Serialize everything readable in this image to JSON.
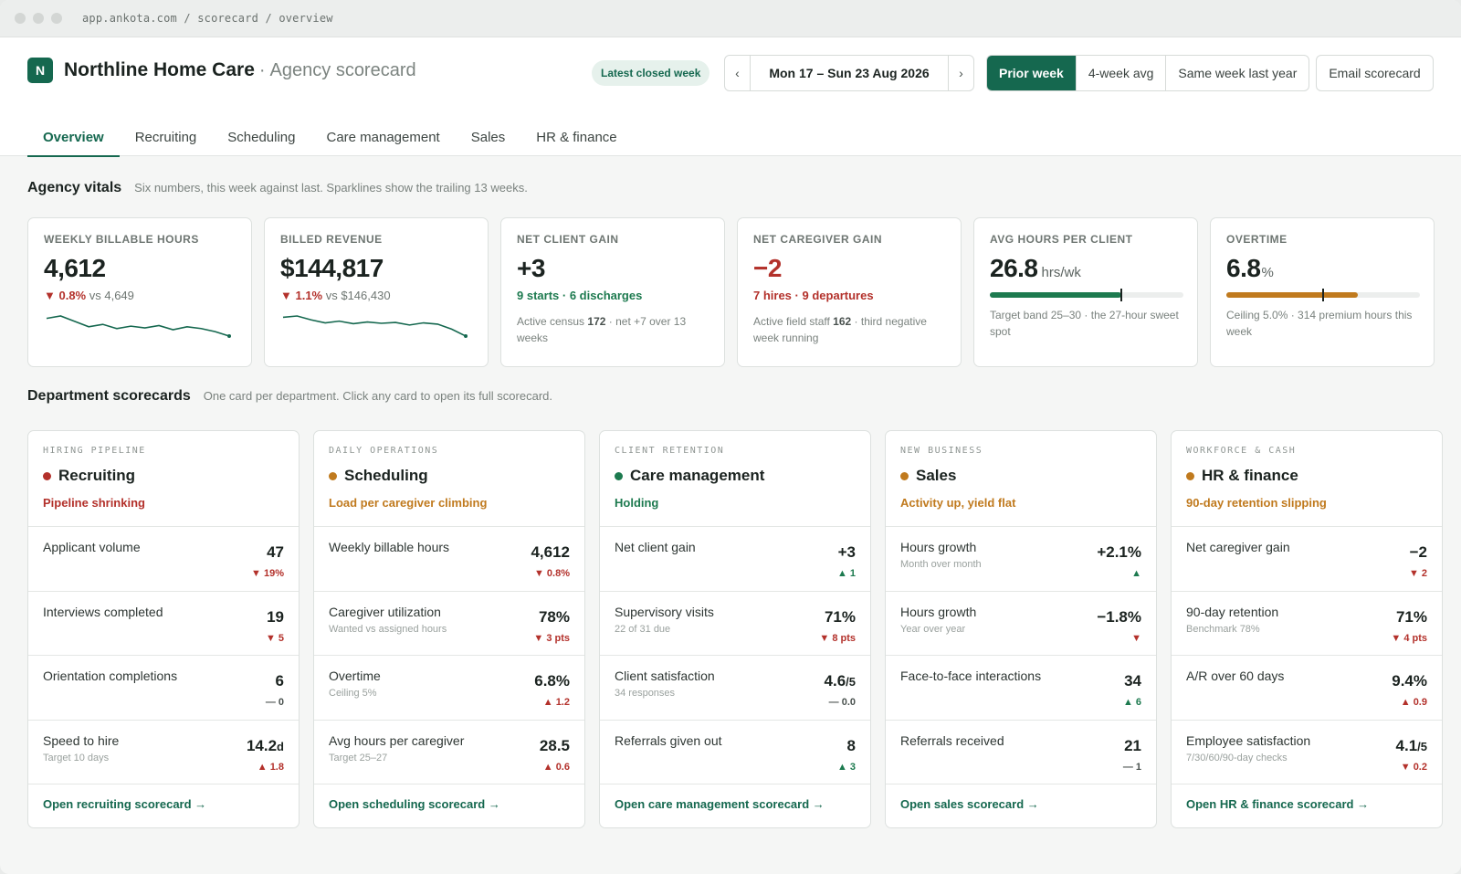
{
  "browser": {
    "url": "app.ankota.com / scorecard / overview"
  },
  "brand": {
    "logo_letter": "N",
    "name": "Northline Home Care",
    "separator": "·",
    "subtitle": "Agency scorecard"
  },
  "header": {
    "badge": "Latest closed week",
    "week_prev": "‹",
    "week_range": "Mon 17 – Sun 23 Aug 2026",
    "week_next": "›",
    "compare": [
      {
        "label": "Prior week",
        "active": true
      },
      {
        "label": "4-week avg",
        "active": false
      },
      {
        "label": "Same week last year",
        "active": false
      }
    ],
    "email_label": "Email scorecard"
  },
  "tabs": [
    "Overview",
    "Recruiting",
    "Scheduling",
    "Care management",
    "Sales",
    "HR & finance"
  ],
  "vitals_section": {
    "title": "Agency vitals",
    "desc": "Six numbers, this week against last. Sparklines show the trailing 13 weeks."
  },
  "vitals": {
    "hours": {
      "label": "WEEKLY BILLABLE HOURS",
      "value": "4,612",
      "delta": "▼ 0.8%",
      "vs": "vs 4,649",
      "spark": [
        4760,
        4780,
        4735,
        4690,
        4710,
        4675,
        4695,
        4680,
        4700,
        4665,
        4690,
        4675,
        4649,
        4612
      ]
    },
    "revenue": {
      "label": "BILLED REVENUE",
      "value": "$144,817",
      "delta": "▼ 1.1%",
      "vs": "vs $146,430",
      "spark": [
        149200,
        149500,
        148600,
        147900,
        148300,
        147700,
        148100,
        147800,
        148000,
        147400,
        147900,
        147600,
        146430,
        144817
      ]
    },
    "clients": {
      "label": "NET CLIENT GAIN",
      "value": "+3",
      "starts": "9 starts",
      "sep": "·",
      "discharges": "6 discharges",
      "note_pre": "Active census",
      "note_num": "172",
      "note_post": "· net +7 over 13 weeks"
    },
    "caregivers": {
      "label": "NET CAREGIVER GAIN",
      "value": "−2",
      "hires": "7 hires",
      "sep": "·",
      "departures": "9 departures",
      "note_pre": "Active field staff",
      "note_num": "162",
      "note_post": "· third negative week running"
    },
    "avg_hours": {
      "label": "AVG HOURS PER CLIENT",
      "value": "26.8",
      "unit": "hrs/wk",
      "fill": 0.68,
      "marker": 0.68,
      "note": "Target band 25–30 · the 27-hour sweet spot"
    },
    "overtime": {
      "label": "OVERTIME",
      "value": "6.8",
      "unit": "%",
      "fill": 0.68,
      "marker": 0.5,
      "note": "Ceiling 5.0% · 314 premium hours this week"
    }
  },
  "colors": {
    "brand": "#15684f",
    "bad": "#b3312b",
    "good": "#1d7a4f",
    "warn": "#c07a1e",
    "ot_bar": "#c07a1e",
    "avg_bar": "#1d7a4f"
  },
  "dept_section": {
    "title": "Department scorecards",
    "desc": "One card per department. Click any card to open its full scorecard."
  },
  "departments": [
    {
      "category": "HIRING PIPELINE",
      "title": "Recruiting",
      "status": "Pipeline shrinking",
      "tone": "bad",
      "rows": [
        {
          "label": "Applicant volume",
          "sub": "",
          "value": "47",
          "value_small": "",
          "delta": "▼ 19%",
          "dir": "down"
        },
        {
          "label": "Interviews completed",
          "sub": "",
          "value": "19",
          "value_small": "",
          "delta": "▼ 5",
          "dir": "down"
        },
        {
          "label": "Orientation completions",
          "sub": "",
          "value": "6",
          "value_small": "",
          "delta": "— 0",
          "dir": "flat"
        },
        {
          "label": "Speed to hire",
          "sub": "Target 10 days",
          "value": "14.2",
          "value_small": "d",
          "delta": "▲ 1.8",
          "dir": "down"
        }
      ],
      "link": "Open recruiting scorecard →"
    },
    {
      "category": "DAILY OPERATIONS",
      "title": "Scheduling",
      "status": "Load per caregiver climbing",
      "tone": "warn",
      "rows": [
        {
          "label": "Weekly billable hours",
          "sub": "",
          "value": "4,612",
          "value_small": "",
          "delta": "▼ 0.8%",
          "dir": "down"
        },
        {
          "label": "Caregiver utilization",
          "sub": "Wanted vs assigned hours",
          "value": "78%",
          "value_small": "",
          "delta": "▼ 3 pts",
          "dir": "down"
        },
        {
          "label": "Overtime",
          "sub": "Ceiling 5%",
          "value": "6.8%",
          "value_small": "",
          "delta": "▲ 1.2",
          "dir": "down"
        },
        {
          "label": "Avg hours per caregiver",
          "sub": "Target 25–27",
          "value": "28.5",
          "value_small": "",
          "delta": "▲ 0.6",
          "dir": "down"
        }
      ],
      "link": "Open scheduling scorecard →"
    },
    {
      "category": "CLIENT RETENTION",
      "title": "Care management",
      "status": "Holding",
      "tone": "good",
      "rows": [
        {
          "label": "Net client gain",
          "sub": "",
          "value": "+3",
          "value_small": "",
          "delta": "▲ 1",
          "dir": "up"
        },
        {
          "label": "Supervisory visits",
          "sub": "22 of 31 due",
          "value": "71%",
          "value_small": "",
          "delta": "▼ 8 pts",
          "dir": "down"
        },
        {
          "label": "Client satisfaction",
          "sub": "34 responses",
          "value": "4.6",
          "value_small": "/5",
          "delta": "— 0.0",
          "dir": "flat"
        },
        {
          "label": "Referrals given out",
          "sub": "",
          "value": "8",
          "value_small": "",
          "delta": "▲ 3",
          "dir": "up"
        }
      ],
      "link": "Open care management scorecard →"
    },
    {
      "category": "NEW BUSINESS",
      "title": "Sales",
      "status": "Activity up, yield flat",
      "tone": "warn",
      "rows": [
        {
          "label": "Hours growth",
          "sub": "Month over month",
          "value": "+2.1%",
          "value_small": "",
          "delta": "▲",
          "dir": "up"
        },
        {
          "label": "Hours growth",
          "sub": "Year over year",
          "value": "−1.8%",
          "value_small": "",
          "delta": "▼",
          "dir": "down"
        },
        {
          "label": "Face-to-face interactions",
          "sub": "",
          "value": "34",
          "value_small": "",
          "delta": "▲ 6",
          "dir": "up"
        },
        {
          "label": "Referrals received",
          "sub": "",
          "value": "21",
          "value_small": "",
          "delta": "— 1",
          "dir": "flat"
        }
      ],
      "link": "Open sales scorecard →"
    },
    {
      "category": "WORKFORCE & CASH",
      "title": "HR & finance",
      "status": "90-day retention slipping",
      "tone": "warn",
      "rows": [
        {
          "label": "Net caregiver gain",
          "sub": "",
          "value": "−2",
          "value_small": "",
          "delta": "▼ 2",
          "dir": "down"
        },
        {
          "label": "90-day retention",
          "sub": "Benchmark 78%",
          "value": "71%",
          "value_small": "",
          "delta": "▼ 4 pts",
          "dir": "down"
        },
        {
          "label": "A/R over 60 days",
          "sub": "",
          "value": "9.4%",
          "value_small": "",
          "delta": "▲ 0.9",
          "dir": "down"
        },
        {
          "label": "Employee satisfaction",
          "sub": "7/30/60/90-day checks",
          "value": "4.1",
          "value_small": "/5",
          "delta": "▼ 0.2",
          "dir": "down"
        }
      ],
      "link": "Open HR & finance scorecard →"
    }
  ]
}
